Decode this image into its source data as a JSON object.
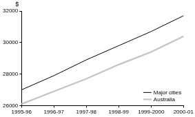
{
  "chart_data": {
    "type": "line",
    "y_label": "$",
    "categories": [
      "1995-96",
      "1996-97",
      "1997-98",
      "1998-99",
      "1999-2000",
      "2000-01"
    ],
    "series": [
      {
        "name": "Major cities",
        "color": "#000000",
        "values": [
          27000,
          27900,
          28900,
          29800,
          30700,
          31700
        ]
      },
      {
        "name": "Australia",
        "color": "#c4c4c4",
        "values": [
          26100,
          26900,
          27700,
          28600,
          29400,
          30400
        ]
      }
    ],
    "ylim": [
      26000,
      32000
    ],
    "yticks": [
      26000,
      28000,
      30000,
      32000
    ],
    "grid": false,
    "legend": "lower right"
  }
}
